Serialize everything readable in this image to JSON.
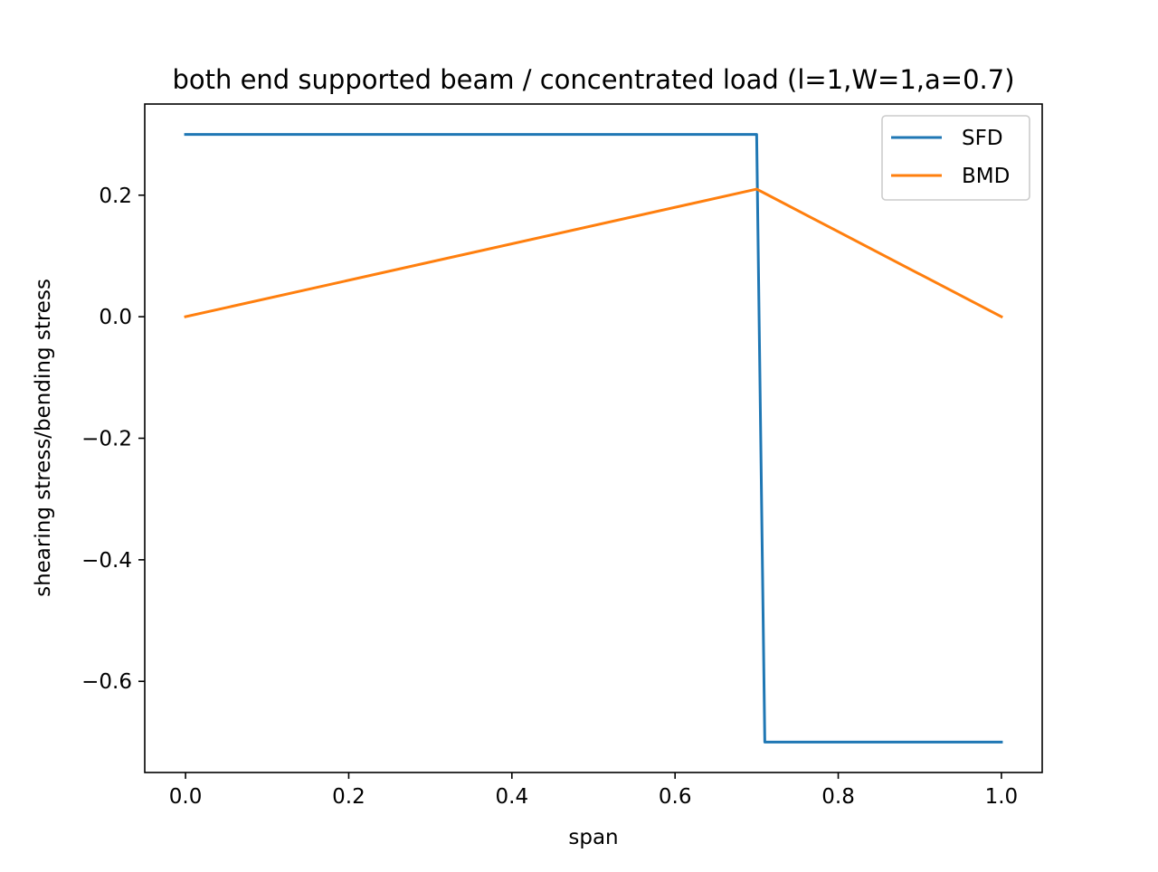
{
  "chart_data": {
    "type": "line",
    "title": "both end supported beam / concentrated load (l=1,W=1,a=0.7)",
    "xlabel": "span",
    "ylabel": "shearing stress/bending stress",
    "xlim": [
      -0.05,
      1.05
    ],
    "ylim": [
      -0.75,
      0.35
    ],
    "xticks": [
      0.0,
      0.2,
      0.4,
      0.6,
      0.8,
      1.0
    ],
    "xtick_labels": [
      "0.0",
      "0.2",
      "0.4",
      "0.6",
      "0.8",
      "1.0"
    ],
    "yticks": [
      0.2,
      0.0,
      -0.2,
      -0.4,
      -0.6
    ],
    "ytick_labels": [
      "0.2",
      "0.0",
      "−0.2",
      "−0.4",
      "−0.6"
    ],
    "grid": false,
    "legend_position": "upper right",
    "series": [
      {
        "name": "SFD",
        "color": "#1f77b4",
        "x": [
          0.0,
          0.7,
          0.71,
          1.0
        ],
        "y": [
          0.3,
          0.3,
          -0.7,
          -0.7
        ]
      },
      {
        "name": "BMD",
        "color": "#ff7f0e",
        "x": [
          0.0,
          0.7,
          0.71,
          1.0
        ],
        "y": [
          0.0,
          0.21,
          0.203,
          0.0
        ]
      }
    ]
  }
}
